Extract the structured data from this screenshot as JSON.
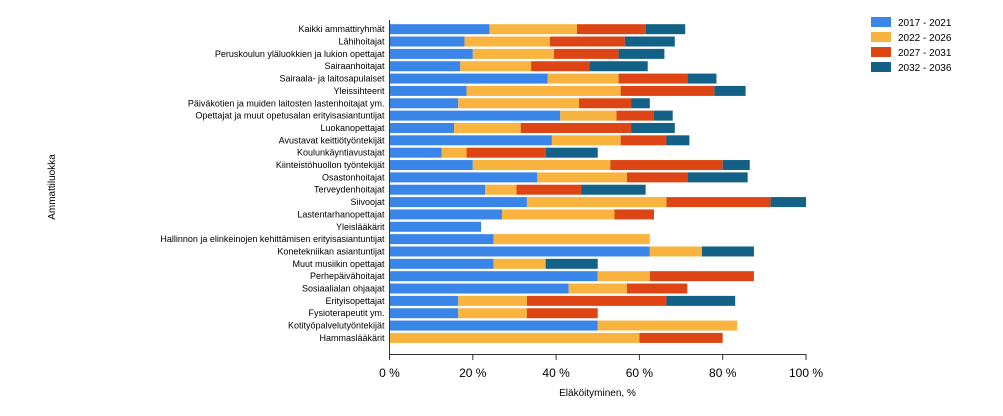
{
  "chart_data": {
    "type": "bar",
    "orientation": "horizontal",
    "stacked": true,
    "title": "",
    "xlabel": "Eläköityminen, %",
    "ylabel": "Ammattiluokka",
    "xlim": [
      0,
      100
    ],
    "xticks": [
      0,
      20,
      40,
      60,
      80,
      100
    ],
    "xtick_labels": [
      "0 %",
      "20 %",
      "40 %",
      "60 %",
      "80 %",
      "100 %"
    ],
    "grid": false,
    "legend_position": "top-right",
    "categories": [
      "Kaikki ammattiryhmät",
      "Lähihoitajat",
      "Peruskoulun yläluokkien ja lukion opettajat",
      "Sairaanhoitajat",
      "Sairaala- ja laitosapulaiset",
      "Yleissihteerit",
      "Päiväkotien ja muiden laitosten lastenhoitajat ym.",
      "Opettajat ja muut opetusalan erityisasiantuntijat",
      "Luokanopettajat",
      "Avustavat keittiötyöntekijät",
      "Koulunkäyntiavustajat",
      "Kiinteistöhuollon työntekijät",
      "Osastonhoitajat",
      "Terveydenhoitajat",
      "Siivoojat",
      "Lastentarhanopettajat",
      "Yleislääkärit",
      "Hallinnon ja elinkeinojen kehittämisen erityisasiantuntijat",
      "Konetekniikan asiantuntijat",
      "Muut musiikin opettajat",
      "Perhepäivähoitajat",
      "Sosiaalialan ohjaajat",
      "Erityisopettajat",
      "Fysioterapeutit ym.",
      "Kotityöpalvelutyöntekijät",
      "Hammaslääkärit"
    ],
    "series": [
      {
        "name": "2017 - 2021",
        "color": "#3a86e8",
        "values": [
          24,
          18,
          20,
          17,
          38,
          18.5,
          16.5,
          41,
          15.5,
          39,
          12.5,
          20,
          35.5,
          23,
          33,
          27,
          22,
          25,
          62.5,
          25,
          50,
          43,
          16.5,
          16.5,
          50,
          0
        ]
      },
      {
        "name": "2022 - 2026",
        "color": "#f9b440",
        "values": [
          21,
          20.5,
          19.5,
          17,
          17,
          37,
          29,
          13.5,
          16,
          16.5,
          6,
          33,
          21.5,
          7.5,
          33.5,
          27,
          0,
          37.5,
          12.5,
          12.5,
          12.5,
          14,
          16.5,
          16.5,
          33.5,
          60
        ]
      },
      {
        "name": "2027 - 2031",
        "color": "#dd4614",
        "values": [
          16.5,
          18,
          15.5,
          14,
          16.5,
          22.5,
          12.5,
          9,
          26.5,
          11,
          19,
          27,
          14.5,
          15.5,
          25,
          9.5,
          0,
          0,
          0,
          0,
          25,
          14.5,
          33.5,
          17,
          0,
          20
        ]
      },
      {
        "name": "2032 - 2036",
        "color": "#136187",
        "values": [
          9.5,
          12,
          11,
          14,
          7,
          7.5,
          4.5,
          4.5,
          10.5,
          5.5,
          12.5,
          6.5,
          14.5,
          15.5,
          8.5,
          0,
          0,
          0,
          12.5,
          12.5,
          0,
          0,
          16.5,
          0,
          0,
          0
        ]
      }
    ]
  }
}
